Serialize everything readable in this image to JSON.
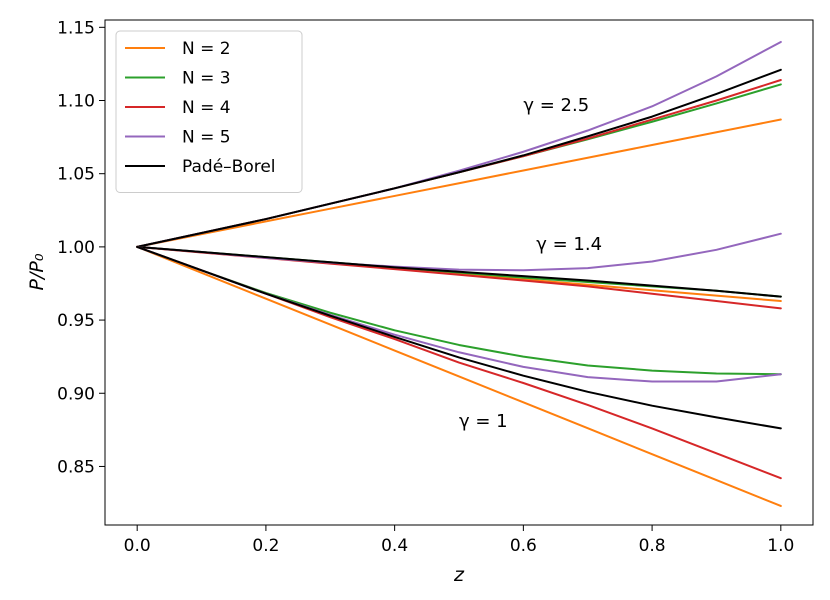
{
  "chart_data": {
    "type": "line",
    "xlabel": "z",
    "ylabel": "P/P₀",
    "xlim": [
      -0.05,
      1.05
    ],
    "ylim": [
      0.81,
      1.155
    ],
    "xticks": [
      0.0,
      0.2,
      0.4,
      0.6,
      0.8,
      1.0
    ],
    "xtick_labels": [
      "0.0",
      "0.2",
      "0.4",
      "0.6",
      "0.8",
      "1.0"
    ],
    "yticks": [
      0.85,
      0.9,
      0.95,
      1.0,
      1.05,
      1.1,
      1.15
    ],
    "ytick_labels": [
      "0.85",
      "0.90",
      "0.95",
      "1.00",
      "1.05",
      "1.10",
      "1.15"
    ],
    "grid": false,
    "legend_position": "top-left",
    "legend": [
      {
        "label": "N = 2",
        "color": "#ff7f0e"
      },
      {
        "label": "N = 3",
        "color": "#2ca02c"
      },
      {
        "label": "N = 4",
        "color": "#d62728"
      },
      {
        "label": "N = 5",
        "color": "#9467bd"
      },
      {
        "label": "Padé–Borel",
        "color": "#000000"
      }
    ],
    "annotations": [
      {
        "text": "γ = 2.5",
        "x": 0.6,
        "y": 1.093
      },
      {
        "text": "γ = 1.4",
        "x": 0.62,
        "y": 0.998
      },
      {
        "text": "γ = 1",
        "x": 0.5,
        "y": 0.877
      }
    ],
    "x": [
      0.0,
      0.1,
      0.2,
      0.3,
      0.4,
      0.5,
      0.6,
      0.7,
      0.8,
      0.9,
      1.0
    ],
    "groups": [
      {
        "gamma": "2.5",
        "series": [
          {
            "name": "N = 2",
            "color": "#ff7f0e",
            "values": [
              1.0,
              1.0087,
              1.0174,
              1.0261,
              1.0348,
              1.0435,
              1.0522,
              1.0609,
              1.0696,
              1.0783,
              1.087
            ]
          },
          {
            "name": "N = 3",
            "color": "#2ca02c",
            "values": [
              1.0,
              1.0095,
              1.019,
              1.0295,
              1.04,
              1.051,
              1.062,
              1.0735,
              1.0855,
              1.098,
              1.111
            ]
          },
          {
            "name": "N = 4",
            "color": "#d62728",
            "values": [
              1.0,
              1.0095,
              1.019,
              1.0295,
              1.04,
              1.051,
              1.062,
              1.074,
              1.087,
              1.1,
              1.114
            ]
          },
          {
            "name": "N = 5",
            "color": "#9467bd",
            "values": [
              1.0,
              1.0095,
              1.019,
              1.0295,
              1.04,
              1.052,
              1.065,
              1.0795,
              1.096,
              1.1165,
              1.14
            ]
          },
          {
            "name": "Padé–Borel",
            "color": "#000000",
            "values": [
              1.0,
              1.0095,
              1.019,
              1.0295,
              1.04,
              1.051,
              1.0625,
              1.0755,
              1.089,
              1.1045,
              1.121
            ]
          }
        ]
      },
      {
        "gamma": "1.4",
        "series": [
          {
            "name": "N = 2",
            "color": "#ff7f0e",
            "values": [
              1.0,
              0.9963,
              0.9926,
              0.9889,
              0.9852,
              0.9815,
              0.9778,
              0.9741,
              0.9704,
              0.9667,
              0.963
            ]
          },
          {
            "name": "N = 3",
            "color": "#2ca02c",
            "values": [
              1.0,
              0.9965,
              0.993,
              0.9895,
              0.986,
              0.9825,
              0.979,
              0.976,
              0.973,
              0.97,
              0.966
            ]
          },
          {
            "name": "N = 4",
            "color": "#d62728",
            "values": [
              1.0,
              0.9962,
              0.9924,
              0.9886,
              0.9848,
              0.981,
              0.977,
              0.973,
              0.968,
              0.963,
              0.958
            ]
          },
          {
            "name": "N = 5",
            "color": "#9467bd",
            "values": [
              1.0,
              0.9965,
              0.9925,
              0.9892,
              0.9865,
              0.9845,
              0.984,
              0.9855,
              0.99,
              0.998,
              1.009
            ]
          },
          {
            "name": "Padé–Borel",
            "color": "#000000",
            "values": [
              1.0,
              0.9965,
              0.993,
              0.9895,
              0.986,
              0.983,
              0.98,
              0.977,
              0.9735,
              0.97,
              0.966
            ]
          }
        ]
      },
      {
        "gamma": "1",
        "series": [
          {
            "name": "N = 2",
            "color": "#ff7f0e",
            "values": [
              1.0,
              0.9823,
              0.9646,
              0.9469,
              0.9292,
              0.9115,
              0.8938,
              0.8761,
              0.8584,
              0.8407,
              0.823
            ]
          },
          {
            "name": "N = 3",
            "color": "#2ca02c",
            "values": [
              1.0,
              0.984,
              0.9685,
              0.955,
              0.943,
              0.933,
              0.925,
              0.919,
              0.9155,
              0.9135,
              0.913
            ]
          },
          {
            "name": "N = 4",
            "color": "#d62728",
            "values": [
              1.0,
              0.984,
              0.968,
              0.952,
              0.937,
              0.921,
              0.907,
              0.892,
              0.876,
              0.859,
              0.842
            ]
          },
          {
            "name": "N = 5",
            "color": "#9467bd",
            "values": [
              1.0,
              0.984,
              0.968,
              0.9535,
              0.94,
              0.928,
              0.918,
              0.911,
              0.908,
              0.908,
              0.913
            ]
          },
          {
            "name": "Padé–Borel",
            "color": "#000000",
            "values": [
              1.0,
              0.984,
              0.968,
              0.953,
              0.9385,
              0.9245,
              0.912,
              0.901,
              0.8915,
              0.8835,
              0.876
            ]
          }
        ]
      }
    ]
  }
}
